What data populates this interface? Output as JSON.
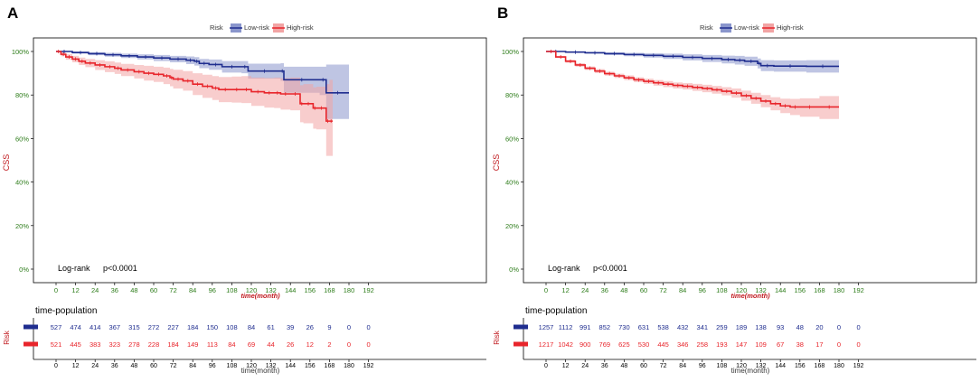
{
  "chart_data": [
    {
      "panel_label": "A",
      "type": "line",
      "subtype": "kaplan-meier",
      "ylabel": "CSS",
      "xlabel": "time(month)",
      "ylim": [
        0,
        100
      ],
      "yticks": [
        "0%",
        "20%",
        "40%",
        "60%",
        "80%",
        "100%"
      ],
      "xticks": [
        "0",
        "12",
        "24",
        "36",
        "48",
        "60",
        "72",
        "84",
        "96",
        "108",
        "120",
        "132",
        "144",
        "156",
        "168",
        "180",
        "192"
      ],
      "legend": {
        "title": "Risk",
        "position": "top-center",
        "entries": [
          "Low-risk",
          "High-risk"
        ]
      },
      "annotation": {
        "logrank": "Log-rank",
        "pvalue": "p<0.0001"
      },
      "series": [
        {
          "name": "Low-risk",
          "color": "#1f2d8f",
          "band_color": "#8a96cc",
          "x": [
            0,
            10,
            20,
            30,
            40,
            50,
            60,
            70,
            80,
            85,
            88,
            94,
            102,
            114,
            118,
            138,
            140,
            162,
            166,
            180
          ],
          "y": [
            100,
            99.5,
            99,
            98.5,
            98,
            97.5,
            97,
            96.5,
            96,
            95.5,
            94.5,
            94,
            93,
            93,
            91,
            91,
            87,
            87,
            81,
            81
          ],
          "lower": [
            100,
            99,
            98.3,
            97.6,
            97,
            96.3,
            95.6,
            95,
            94.2,
            93.5,
            92.3,
            91.6,
            90.3,
            90,
            87.5,
            86.5,
            81,
            80,
            69,
            68
          ],
          "upper": [
            100,
            100,
            99.7,
            99.4,
            99,
            98.7,
            98.4,
            98,
            97.7,
            97.4,
            96.6,
            96.3,
            95.6,
            95.6,
            94.4,
            94.6,
            93,
            93,
            94,
            95
          ]
        },
        {
          "name": "High-risk",
          "color": "#e8252b",
          "band_color": "#f2a4a4",
          "x": [
            0,
            3,
            6,
            10,
            14,
            18,
            24,
            30,
            36,
            40,
            48,
            54,
            60,
            66,
            70,
            72,
            78,
            84,
            90,
            96,
            100,
            108,
            114,
            120,
            128,
            134,
            138,
            144,
            150,
            152,
            158,
            160,
            166,
            168,
            170
          ],
          "y": [
            100,
            98.7,
            97.5,
            96.5,
            95.5,
            94.7,
            93.8,
            93,
            92.3,
            91.5,
            90.7,
            90,
            89.5,
            88.8,
            88,
            87.3,
            86.5,
            85,
            84,
            83.2,
            82.5,
            82.5,
            82.5,
            81.5,
            81,
            81,
            80.5,
            80.5,
            76,
            76,
            74,
            74,
            68,
            68,
            68
          ],
          "lower": [
            100,
            97.8,
            96.2,
            95,
            93.8,
            92.8,
            91.5,
            90.5,
            89.7,
            88.7,
            87.6,
            86.6,
            86,
            85,
            84,
            83,
            82,
            80,
            78.7,
            77.7,
            76.7,
            76.5,
            76.3,
            75,
            74.2,
            74,
            73.3,
            73,
            67.5,
            67,
            64.5,
            64.2,
            52,
            52,
            52
          ],
          "upper": [
            100,
            99.6,
            98.8,
            98,
            97.2,
            96.6,
            96,
            95.5,
            94.9,
            94.3,
            93.8,
            93.4,
            93,
            92.6,
            92,
            91.6,
            91,
            90,
            89.3,
            88.7,
            88.3,
            88.5,
            88.7,
            88,
            87.8,
            88,
            87.7,
            88,
            84.5,
            85,
            83.5,
            83.8,
            85,
            87,
            88.5
          ]
        }
      ],
      "risk_table": {
        "title": "time-population",
        "ylabel": "Risk",
        "xlabel": "time(month)",
        "rows": [
          {
            "name": "Low-risk",
            "values": [
              "527",
              "474",
              "414",
              "367",
              "315",
              "272",
              "227",
              "184",
              "150",
              "108",
              "84",
              "61",
              "39",
              "26",
              "9",
              "0",
              "0"
            ]
          },
          {
            "name": "High-risk",
            "values": [
              "521",
              "445",
              "383",
              "323",
              "278",
              "228",
              "184",
              "149",
              "113",
              "84",
              "69",
              "44",
              "26",
              "12",
              "2",
              "0",
              "0"
            ]
          }
        ]
      }
    },
    {
      "panel_label": "B",
      "type": "line",
      "subtype": "kaplan-meier",
      "ylabel": "CSS",
      "xlabel": "time(month)",
      "ylim": [
        0,
        100
      ],
      "yticks": [
        "0%",
        "20%",
        "40%",
        "60%",
        "80%",
        "100%"
      ],
      "xticks": [
        "0",
        "12",
        "24",
        "36",
        "48",
        "60",
        "72",
        "84",
        "96",
        "108",
        "120",
        "132",
        "144",
        "156",
        "168",
        "180",
        "192"
      ],
      "legend": {
        "title": "Risk",
        "position": "top-center",
        "entries": [
          "Low-risk",
          "High-risk"
        ]
      },
      "annotation": {
        "logrank": "Log-rank",
        "pvalue": "p<0.0001"
      },
      "series": [
        {
          "name": "Low-risk",
          "color": "#1f2d8f",
          "band_color": "#8a96cc",
          "x": [
            0,
            12,
            24,
            36,
            48,
            60,
            72,
            84,
            96,
            108,
            116,
            122,
            130,
            132,
            140,
            160,
            180
          ],
          "y": [
            100,
            99.7,
            99.4,
            99,
            98.6,
            98.2,
            97.8,
            97.3,
            96.8,
            96.3,
            96,
            95.5,
            94.5,
            93.5,
            93.3,
            93.2,
            93.2
          ],
          "lower": [
            100,
            99.4,
            99,
            98.4,
            97.8,
            97.2,
            96.6,
            95.9,
            95.2,
            94.5,
            94,
            93.4,
            92.2,
            91,
            90.7,
            90.3,
            90
          ],
          "upper": [
            100,
            100,
            99.8,
            99.6,
            99.4,
            99.2,
            99,
            98.7,
            98.4,
            98.1,
            98,
            97.6,
            96.8,
            96,
            95.9,
            96,
            96.2
          ]
        },
        {
          "name": "High-risk",
          "color": "#e8252b",
          "band_color": "#f2a4a4",
          "x": [
            0,
            6,
            12,
            18,
            24,
            30,
            36,
            42,
            48,
            54,
            60,
            66,
            72,
            78,
            84,
            90,
            96,
            102,
            108,
            114,
            120,
            126,
            132,
            138,
            144,
            150,
            156,
            168,
            180
          ],
          "y": [
            100,
            97.5,
            95.5,
            93.8,
            92.3,
            91,
            89.8,
            88.8,
            87.9,
            87,
            86.3,
            85.6,
            85,
            84.4,
            84,
            83.5,
            83,
            82.4,
            81.7,
            80.9,
            79.7,
            78.5,
            77.2,
            76,
            75,
            74.5,
            74.5,
            74.5,
            74.5
          ],
          "lower": [
            100,
            97,
            94.8,
            93,
            91.5,
            90.1,
            88.9,
            87.8,
            86.8,
            85.9,
            85.1,
            84.3,
            83.6,
            83,
            82.5,
            81.9,
            81.3,
            80.6,
            79.8,
            78.8,
            77.4,
            76,
            74.4,
            73,
            71.7,
            70.8,
            70,
            69,
            68
          ],
          "upper": [
            100,
            98,
            96.2,
            94.6,
            93.1,
            91.9,
            90.7,
            89.8,
            89,
            88.1,
            87.5,
            86.9,
            86.4,
            85.8,
            85.5,
            85.1,
            84.7,
            84.2,
            83.6,
            83,
            82,
            81,
            80,
            79,
            78.3,
            78.2,
            78.5,
            79.5,
            80.5
          ]
        }
      ],
      "risk_table": {
        "title": "time-population",
        "ylabel": "Risk",
        "xlabel": "time(month)",
        "rows": [
          {
            "name": "Low-risk",
            "values": [
              "1257",
              "1112",
              "991",
              "852",
              "730",
              "631",
              "538",
              "432",
              "341",
              "259",
              "189",
              "138",
              "93",
              "48",
              "20",
              "0",
              "0"
            ]
          },
          {
            "name": "High-risk",
            "values": [
              "1217",
              "1042",
              "900",
              "769",
              "625",
              "530",
              "445",
              "346",
              "258",
              "193",
              "147",
              "109",
              "67",
              "38",
              "17",
              "0",
              "0"
            ]
          }
        ]
      }
    }
  ]
}
